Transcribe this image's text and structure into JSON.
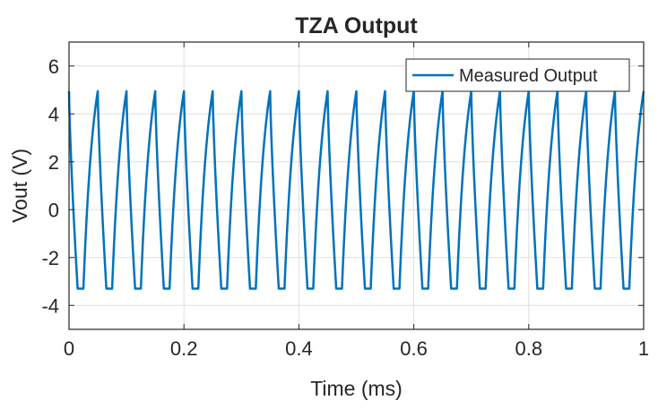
{
  "chart_data": {
    "type": "line",
    "title": "TZA Output",
    "xlabel": "Time (ms)",
    "ylabel": "Vout (V)",
    "xlim": [
      0,
      1
    ],
    "ylim": [
      -5,
      7
    ],
    "xticks": [
      0,
      0.2,
      0.4,
      0.6,
      0.8,
      1
    ],
    "xtick_labels": [
      "0",
      "0.2",
      "0.4",
      "0.6",
      "0.8",
      "1"
    ],
    "yticks": [
      -4,
      -2,
      0,
      2,
      4,
      6
    ],
    "ytick_labels": [
      "-4",
      "-2",
      "0",
      "2",
      "4",
      "6"
    ],
    "grid": true,
    "legend_position": "top-right",
    "series": [
      {
        "name": "Measured Output",
        "color": "#0072BD",
        "period_ms": 0.05,
        "peak_v": 4.95,
        "trough_v": -3.3,
        "waveform": "periodic: fast fall from peak to clipped trough, flat trough, exponential-like rise back to peak"
      }
    ]
  }
}
